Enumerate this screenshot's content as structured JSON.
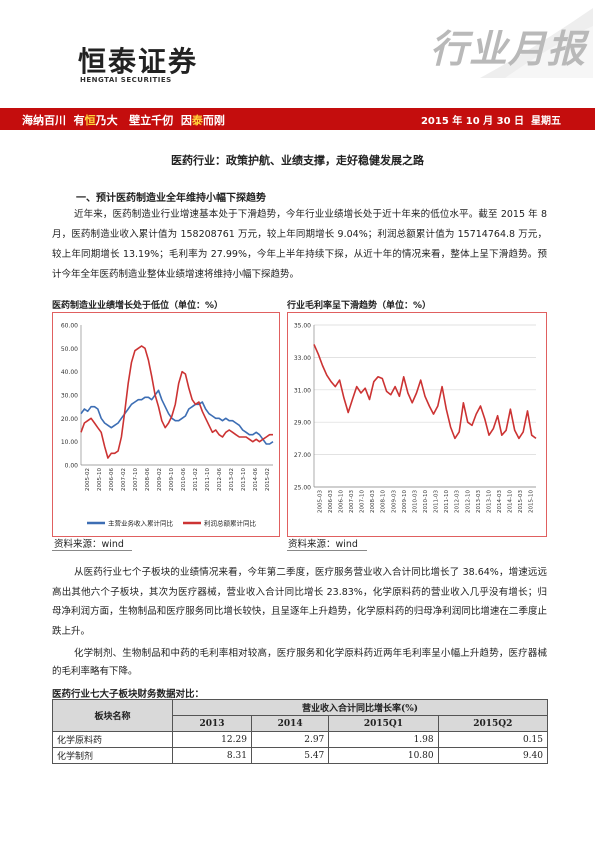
{
  "header": {
    "logo_cn": "恒泰证券",
    "logo_en": "HENGTAI SECURITIES",
    "report_type": "行业月报",
    "slogan": [
      "海纳百川",
      "有",
      "恒",
      "乃大",
      "壁立千仞",
      "因",
      "泰",
      "而刚"
    ],
    "date": "2015 年 10 月 30 日",
    "weekday": "星期五"
  },
  "title": "医药行业：政策护航、业绩支撑，走好稳健发展之路",
  "section1": {
    "heading": "一、预计医药制造业全年维持小幅下探趋势",
    "paragraph": "近年来，医药制造业行业增速基本处于下滑趋势，今年行业业绩增长处于近十年来的低位水平。截至 2015 年 8 月，医药制造业收入累计值为 158208761 万元，较上年同期增长 9.04%；利润总额累计值为 15714764.8 万元，较上年同期增长 13.19%；毛利率为 27.99%，今年上半年持续下探，从近十年的情况来看，整体上呈下滑趋势。预计今年全年医药制造业整体业绩增速将维持小幅下探趋势。"
  },
  "chart_titles": {
    "left": "医药制造业业绩增长处于低位（单位：%）",
    "right": "行业毛利率呈下滑趋势（单位：%）"
  },
  "sources": {
    "left": "资料来源：wind",
    "right": "资料来源：wind"
  },
  "chart_data": [
    {
      "type": "line",
      "title": "医药制造业业绩增长处于低位（单位：%）",
      "ylim": [
        0,
        60
      ],
      "y_ticks": [
        "0.00",
        "10.00",
        "20.00",
        "30.00",
        "40.00",
        "50.00",
        "60.00"
      ],
      "x_ticks": [
        "2005-02",
        "2005-10",
        "2006-06",
        "2007-02",
        "2007-10",
        "2008-06",
        "2009-02",
        "2009-10",
        "2010-06",
        "2011-02",
        "2011-10",
        "2012-06",
        "2013-02",
        "2013-10",
        "2014-06",
        "2015-02"
      ],
      "legend_position": "bottom",
      "grid": false,
      "colors": {
        "revenue": "#3d6eb4",
        "profit": "#cc3333"
      },
      "series": [
        {
          "name": "主营业务收入累计同比",
          "values": [
            22,
            24,
            23,
            25,
            25,
            24,
            20,
            18,
            17,
            16,
            17,
            18,
            20,
            22,
            24,
            26,
            27,
            28,
            28,
            29,
            29,
            28,
            30,
            32,
            28,
            25,
            22,
            20,
            19,
            19,
            20,
            21,
            24,
            25,
            26,
            26,
            27,
            24,
            22,
            21,
            20,
            20,
            19,
            20,
            19,
            19,
            18,
            17,
            15,
            14,
            13,
            13,
            14,
            13,
            11,
            9,
            9,
            10
          ]
        },
        {
          "name": "利润总额累计同比",
          "values": [
            14,
            18,
            19,
            20,
            18,
            16,
            14,
            8,
            3,
            5,
            5,
            6,
            12,
            23,
            35,
            44,
            49,
            50,
            51,
            50,
            45,
            38,
            30,
            25,
            19,
            16,
            18,
            21,
            26,
            35,
            40,
            39,
            33,
            28,
            26,
            27,
            23,
            20,
            17,
            14,
            15,
            13,
            12,
            14,
            15,
            14,
            13,
            12,
            12,
            12,
            11,
            10,
            11,
            10,
            11,
            12,
            13,
            13
          ]
        }
      ]
    },
    {
      "type": "line",
      "title": "行业毛利率呈下滑趋势（单位：%）",
      "ylim": [
        25,
        35
      ],
      "y_ticks": [
        "25.00",
        "27.00",
        "29.00",
        "31.00",
        "33.00",
        "35.00"
      ],
      "x_ticks": [
        "2005-03",
        "2006-03",
        "2006-10",
        "2007-03",
        "2007-10",
        "2008-03",
        "2008-10",
        "2009-03",
        "2009-10",
        "2010-03",
        "2010-10",
        "2011-03",
        "2011-10",
        "2012-03",
        "2012-10",
        "2013-03",
        "2013-10",
        "2014-03",
        "2014-10",
        "2015-03",
        "2015-10"
      ],
      "grid": true,
      "colors": {
        "margin": "#cc3333"
      },
      "series": [
        {
          "name": "毛利率",
          "values": [
            33.8,
            33.2,
            32.5,
            31.9,
            31.5,
            31.2,
            31.6,
            30.5,
            29.6,
            30.4,
            31.2,
            30.8,
            31.1,
            30.4,
            31.5,
            31.8,
            31.7,
            30.9,
            30.7,
            31.2,
            30.6,
            31.8,
            30.8,
            30.2,
            30.8,
            31.6,
            30.6,
            30.0,
            29.5,
            30.0,
            31.2,
            29.8,
            28.7,
            28.0,
            28.4,
            30.2,
            29.0,
            28.8,
            29.5,
            30.0,
            29.2,
            28.2,
            28.6,
            29.4,
            28.2,
            28.5,
            29.8,
            28.5,
            28.0,
            28.4,
            29.7,
            28.2,
            28.0
          ]
        }
      ]
    }
  ],
  "section2": {
    "paragraph1": "从医药行业七个子板块的业绩情况来看，今年第二季度，医疗服务营业收入合计同比增长了 38.64%，增速远远高出其他六个子板块，其次为医疗器械，营业收入合计同比增长 23.83%，化学原料药的营业收入几乎没有增长；归母净利润方面，生物制品和医疗服务同比增长较快，且呈逐年上升趋势，化学原料药的归母净利润同比增速在二季度止跌上升。",
    "paragraph2": "化学制剂、生物制品和中药的毛利率相对较高，医疗服务和化学原料药近两年毛利率呈小幅上升趋势，医疗器械的毛利率略有下降。"
  },
  "table": {
    "title": "医药行业七大子板块财务数据对比：",
    "col_header": "板块名称",
    "group_header": "营业收入合计同比增长率(%)",
    "periods": [
      "2013",
      "2014",
      "2015Q1",
      "2015Q2"
    ],
    "rows": [
      {
        "name": "化学原料药",
        "values": [
          "12.29",
          "2.97",
          "1.98",
          "0.15"
        ]
      },
      {
        "name": "化学制剂",
        "values": [
          "8.31",
          "5.47",
          "10.80",
          "9.40"
        ]
      }
    ]
  }
}
